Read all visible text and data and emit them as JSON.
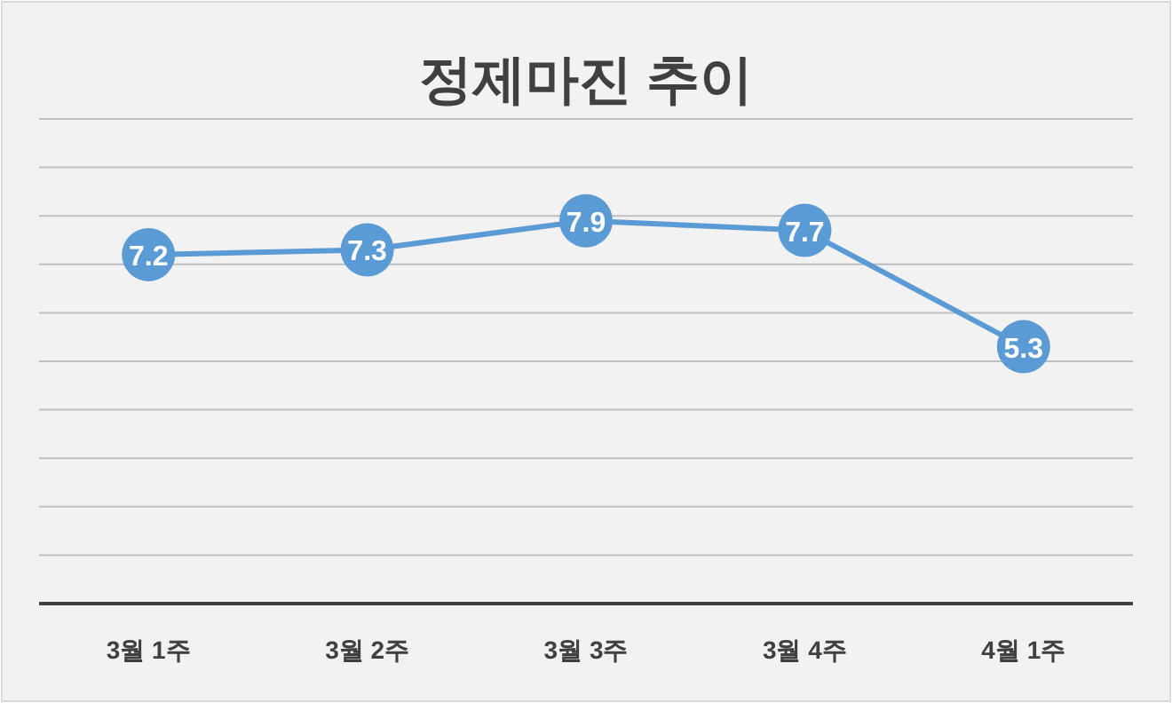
{
  "chart_data": {
    "type": "line",
    "title": "정제마진 추이",
    "categories": [
      "3월 1주",
      "3월 2주",
      "3월 3주",
      "3월 4주",
      "4월 1주"
    ],
    "values": [
      7.2,
      7.3,
      7.9,
      7.7,
      5.3
    ],
    "color": "#5b9bd5",
    "ylim": [
      0,
      10
    ],
    "yticks": [
      {
        "value": 0,
        "label": null
      },
      {
        "value": 1,
        "label": null
      },
      {
        "value": 2,
        "label": null
      },
      {
        "value": 3,
        "label": null
      },
      {
        "value": 4,
        "label": null
      },
      {
        "value": 5,
        "label": null
      },
      {
        "value": 6,
        "label": null
      },
      {
        "value": 7,
        "label": null
      },
      {
        "value": 8,
        "label": null
      },
      {
        "value": 9,
        "label": null
      },
      {
        "value": 10,
        "label": null
      }
    ],
    "grid": "y",
    "marker": "circle",
    "data_labels": true
  }
}
